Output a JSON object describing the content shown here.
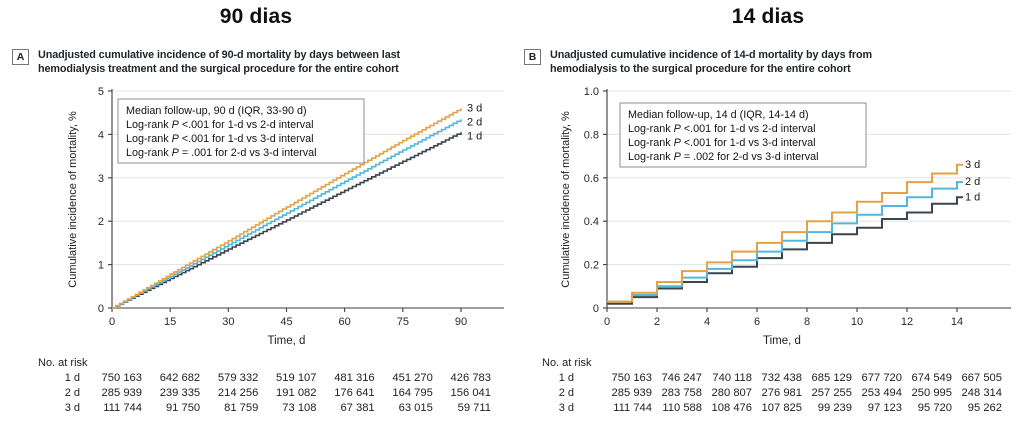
{
  "chart_data": [
    {
      "type": "line-step",
      "panel_label": "A",
      "title": "90 dias",
      "caption_line1": "Unadjusted cumulative incidence of 90-d mortality by days between last",
      "caption_line2": "hemodialysis treatment and the surgical procedure for the entire cohort",
      "xlabel": "Time, d",
      "ylabel": "Cumulative incidence of mortality, %",
      "xlim": [
        0,
        90
      ],
      "ylim": [
        0,
        5
      ],
      "xticks": [
        0,
        15,
        30,
        45,
        60,
        75,
        90
      ],
      "yticks": [
        0,
        1,
        2,
        3,
        4,
        5
      ],
      "ytick_labels": [
        "0",
        "1",
        "2",
        "3",
        "4",
        "5"
      ],
      "grid": "horizontal",
      "legend_box_lines": [
        "Median follow-up, 90 d (IQR, 33-90 d)",
        "Log-rank P <.001 for 1-d vs 2-d interval",
        "Log-rank P <.001 for 1-d vs 3-d interval",
        "Log-rank P = .001 for 2-d vs 3-d interval"
      ],
      "series": [
        {
          "name": "1 d",
          "color": "#3A454D",
          "x": [
            0,
            15,
            30,
            45,
            60,
            75,
            90
          ],
          "values": [
            0,
            0.68,
            1.36,
            2.03,
            2.71,
            3.38,
            4.05
          ]
        },
        {
          "name": "2 d",
          "color": "#4FB8DC",
          "x": [
            0,
            15,
            30,
            45,
            60,
            75,
            90
          ],
          "values": [
            0,
            0.73,
            1.46,
            2.19,
            2.92,
            3.64,
            4.35
          ]
        },
        {
          "name": "3 d",
          "color": "#E3A246",
          "x": [
            0,
            15,
            30,
            45,
            60,
            75,
            90
          ],
          "values": [
            0,
            0.78,
            1.55,
            2.33,
            3.1,
            3.86,
            4.6
          ]
        }
      ],
      "risk_table": {
        "label": "No. at risk",
        "rows": [
          {
            "name": "1 d",
            "values": [
              "750 163",
              "642 682",
              "579 332",
              "519 107",
              "481 316",
              "451 270",
              "426 783"
            ]
          },
          {
            "name": "2 d",
            "values": [
              "285 939",
              "239 335",
              "214 256",
              "191 082",
              "176 641",
              "164 795",
              "156 041"
            ]
          },
          {
            "name": "3 d",
            "values": [
              "111 744",
              "91 750",
              "81 759",
              "73 108",
              "67 381",
              "63 015",
              "59 711"
            ]
          }
        ]
      }
    },
    {
      "type": "line-step",
      "panel_label": "B",
      "title": "14 dias",
      "caption_line1": "Unadjusted cumulative incidence of 14-d mortality by days from",
      "caption_line2": "hemodialysis to the surgical procedure for the entire cohort",
      "xlabel": "Time, d",
      "ylabel": "Cumulative incidence of mortality, %",
      "xlim": [
        0,
        14
      ],
      "ylim": [
        0,
        1.0
      ],
      "xticks": [
        0,
        2,
        4,
        6,
        8,
        10,
        12,
        14
      ],
      "yticks": [
        0,
        0.2,
        0.4,
        0.6,
        0.8,
        1.0
      ],
      "ytick_labels": [
        "0",
        "0.2",
        "0.4",
        "0.6",
        "0.8",
        "1.0"
      ],
      "grid": "horizontal",
      "legend_box_lines": [
        "Median follow-up, 14 d (IQR, 14-14 d)",
        "Log-rank P <.001 for 1-d vs 2-d interval",
        "Log-rank P <.001 for 1-d vs 3-d interval",
        "Log-rank P = .002 for 2-d vs 3-d interval"
      ],
      "series": [
        {
          "name": "1 d",
          "color": "#3A454D",
          "x": [
            0,
            1,
            2,
            3,
            4,
            5,
            6,
            7,
            8,
            9,
            10,
            11,
            12,
            13,
            14
          ],
          "values": [
            0.02,
            0.05,
            0.09,
            0.12,
            0.16,
            0.19,
            0.23,
            0.27,
            0.3,
            0.34,
            0.37,
            0.41,
            0.44,
            0.48,
            0.51
          ]
        },
        {
          "name": "2 d",
          "color": "#4FB8DC",
          "x": [
            0,
            1,
            2,
            3,
            4,
            5,
            6,
            7,
            8,
            9,
            10,
            11,
            12,
            13,
            14
          ],
          "values": [
            0.03,
            0.06,
            0.1,
            0.14,
            0.18,
            0.22,
            0.26,
            0.31,
            0.35,
            0.39,
            0.43,
            0.47,
            0.51,
            0.55,
            0.58
          ]
        },
        {
          "name": "3 d",
          "color": "#E3A246",
          "x": [
            0,
            1,
            2,
            3,
            4,
            5,
            6,
            7,
            8,
            9,
            10,
            11,
            12,
            13,
            14
          ],
          "values": [
            0.03,
            0.07,
            0.12,
            0.17,
            0.21,
            0.26,
            0.3,
            0.35,
            0.4,
            0.44,
            0.49,
            0.53,
            0.58,
            0.62,
            0.66
          ]
        }
      ],
      "risk_table": {
        "label": "No. at risk",
        "rows": [
          {
            "name": "1 d",
            "values": [
              "750 163",
              "746 247",
              "740 118",
              "732 438",
              "685 129",
              "677 720",
              "674 549",
              "667 505"
            ]
          },
          {
            "name": "2 d",
            "values": [
              "285 939",
              "283 758",
              "280 807",
              "276 981",
              "257 255",
              "253 494",
              "250 995",
              "248 314"
            ]
          },
          {
            "name": "3 d",
            "values": [
              "111 744",
              "110 588",
              "108 476",
              "107 825",
              "99 239",
              "97 123",
              "95 720",
              "95 262"
            ]
          }
        ]
      }
    }
  ],
  "colors": {
    "gridline": "#E3E3E3",
    "axis": "#3D3D3D",
    "legend_border": "#8F8F8F"
  }
}
